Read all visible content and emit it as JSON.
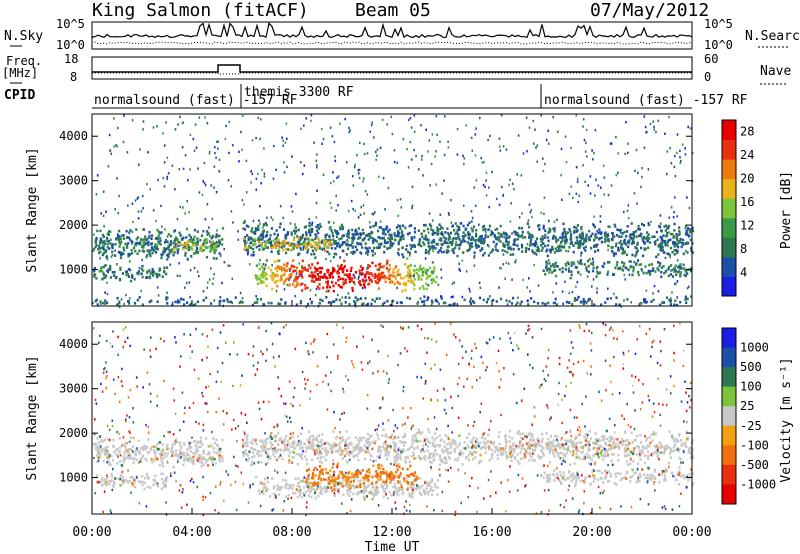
{
  "header": {
    "station": "King Salmon (fitACF)",
    "beam": "Beam 05",
    "date": "07/May/2012"
  },
  "colors": {
    "power": [
      "#1a1fe6",
      "#1d4fa8",
      "#2d7a4f",
      "#3a9a45",
      "#7cc43a",
      "#e8b418",
      "#f07a10",
      "#e83010",
      "#e80000"
    ],
    "velocity": [
      "#1a1fe6",
      "#1d4fa8",
      "#2d7a4f",
      "#7cc43a",
      "#c8c8c8",
      "#f0a010",
      "#f07010",
      "#e83010",
      "#e80000"
    ],
    "ground_scatter": "#c8c8c8"
  },
  "panels": {
    "noise": {
      "left_label": "N.Sky",
      "right_label": "N.Search",
      "left_ticks": [
        "10^5",
        "10^0"
      ],
      "right_ticks": [
        "10^5",
        "10^0"
      ]
    },
    "freq": {
      "left_label_1": "Freq.",
      "left_label_2": "[MHz]",
      "right_label": "Nave",
      "left_ticks": [
        "18",
        "8"
      ],
      "right_ticks": [
        "60",
        "0"
      ]
    },
    "cpid": {
      "label": "CPID",
      "segments": [
        {
          "text": "normalsound (fast) -157 RF",
          "start_h": 0.0
        },
        {
          "text": "themis 3300 RF",
          "start_h": 6.0
        },
        {
          "text": "normalsound (fast) -157 RF",
          "start_h": 18.0
        }
      ]
    }
  },
  "chart_data": [
    {
      "type": "heatmap",
      "title": "",
      "xlabel": "",
      "ylabel": "Slant Range [km]",
      "xlim": [
        0,
        24
      ],
      "ylim": [
        180,
        4500
      ],
      "yticks": [
        1000,
        2000,
        3000,
        4000
      ],
      "colorbar_label": "Power [dB]",
      "colorbar_ticks": [
        4,
        8,
        12,
        16,
        20,
        24,
        28
      ],
      "colorbar_range": [
        0,
        30
      ],
      "features": [
        {
          "name": "band",
          "t0": 0.0,
          "t1": 5.2,
          "r_center": 1600,
          "r_width": 380,
          "value": 8,
          "density": 0.9
        },
        {
          "name": "band-green",
          "t0": 3.2,
          "t1": 5.0,
          "r_center": 1580,
          "r_width": 160,
          "value": 16,
          "density": 0.8
        },
        {
          "name": "band",
          "t0": 6.0,
          "t1": 24.0,
          "r_center": 1700,
          "r_width": 420,
          "value": 7,
          "density": 0.85
        },
        {
          "name": "band-green",
          "t0": 6.0,
          "t1": 9.5,
          "r_center": 1600,
          "r_width": 170,
          "value": 18,
          "density": 0.85
        },
        {
          "name": "lower-band",
          "t0": 0.0,
          "t1": 3.0,
          "r_center": 950,
          "r_width": 200,
          "value": 8,
          "density": 0.8
        },
        {
          "name": "lower-band",
          "t0": 18.0,
          "t1": 24.0,
          "r_center": 1050,
          "r_width": 220,
          "value": 8,
          "density": 0.7
        },
        {
          "name": "strong-echo",
          "t0": 6.5,
          "t1": 13.8,
          "r_center": 900,
          "r_width": 380,
          "value": 26,
          "density": 0.9
        },
        {
          "name": "near-range",
          "t0": 0.0,
          "t1": 24.0,
          "r_center": 280,
          "r_width": 160,
          "value": 6,
          "density": 0.4
        }
      ]
    },
    {
      "type": "heatmap",
      "title": "",
      "xlabel": "Time UT",
      "ylabel": "Slant Range [km]",
      "xlim": [
        0,
        24
      ],
      "ylim": [
        180,
        4500
      ],
      "xticks": [
        "00:00",
        "04:00",
        "08:00",
        "12:00",
        "16:00",
        "20:00",
        "00:00"
      ],
      "yticks": [
        1000,
        2000,
        3000,
        4000
      ],
      "colorbar_label": "Velocity [m s⁻¹]",
      "colorbar_ticks": [
        1000,
        500,
        100,
        25,
        -25,
        -100,
        -500,
        -1000
      ],
      "features": [
        {
          "name": "ground-scatter",
          "t0": 0.0,
          "t1": 5.2,
          "r_center": 1600,
          "r_width": 380,
          "value": "gs",
          "density": 0.9
        },
        {
          "name": "ground-scatter",
          "t0": 6.0,
          "t1": 24.0,
          "r_center": 1700,
          "r_width": 420,
          "value": "gs",
          "density": 0.85
        },
        {
          "name": "ground-scatter",
          "t0": 0.0,
          "t1": 3.0,
          "r_center": 950,
          "r_width": 200,
          "value": "gs",
          "density": 0.8
        },
        {
          "name": "ground-scatter",
          "t0": 18.0,
          "t1": 24.0,
          "r_center": 1050,
          "r_width": 220,
          "value": "gs",
          "density": 0.7
        },
        {
          "name": "ground-scatter",
          "t0": 6.5,
          "t1": 13.8,
          "r_center": 800,
          "r_width": 260,
          "value": "gs",
          "density": 0.9
        },
        {
          "name": "ionospheric",
          "t0": 8.5,
          "t1": 13.0,
          "r_center": 1050,
          "r_width": 300,
          "value": -150,
          "density": 0.8
        }
      ]
    }
  ]
}
